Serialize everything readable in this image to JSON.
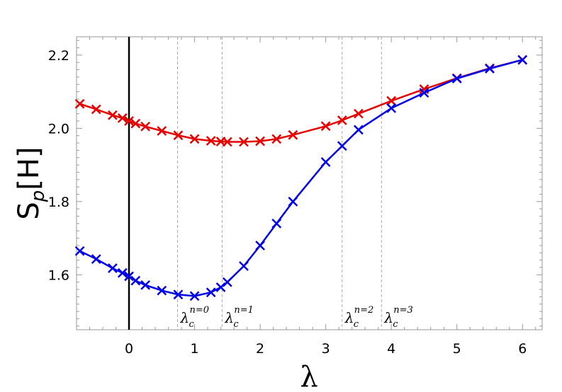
{
  "chart_data": {
    "type": "line",
    "xlabel": "λ",
    "ylabel": "S",
    "ylabel_sub": "p",
    "ylabel_suffix": "[H]",
    "xlim": [
      -0.8,
      6.3
    ],
    "ylim": [
      1.45,
      2.25
    ],
    "xticks": [
      0,
      1,
      2,
      3,
      4,
      5,
      6
    ],
    "yticks": [
      1.6,
      1.8,
      2.0,
      2.2
    ],
    "xtick_labels": [
      "0",
      "1",
      "2",
      "3",
      "4",
      "5",
      "6"
    ],
    "ytick_labels": [
      "1.6",
      "1.8",
      "2.0",
      "2.2"
    ],
    "grid": false,
    "vertical_line_x": 0,
    "critical_lines": [
      {
        "x": 0.74,
        "label": "λ",
        "sub": "c",
        "sup": "n=0"
      },
      {
        "x": 1.42,
        "label": "λ",
        "sub": "c",
        "sup": "n=1"
      },
      {
        "x": 3.25,
        "label": "λ",
        "sub": "c",
        "sup": "n=2"
      },
      {
        "x": 3.85,
        "label": "λ",
        "sub": "c",
        "sup": "n=3"
      }
    ],
    "series": [
      {
        "color": "#e60000",
        "marker": "x",
        "x": [
          -0.75,
          -0.5,
          -0.25,
          -0.1,
          0,
          0.1,
          0.25,
          0.5,
          0.75,
          1.0,
          1.25,
          1.4,
          1.5,
          1.75,
          2.0,
          2.25,
          2.5,
          3.0,
          3.25,
          3.5,
          4.0,
          4.5,
          5.0,
          5.5,
          6.0
        ],
        "values": [
          2.067,
          2.052,
          2.036,
          2.028,
          2.02,
          2.013,
          2.005,
          1.993,
          1.981,
          1.971,
          1.966,
          1.964,
          1.963,
          1.963,
          1.965,
          1.971,
          1.982,
          2.006,
          2.022,
          2.04,
          2.075,
          2.107,
          2.137,
          2.164,
          2.187
        ]
      },
      {
        "color": "#0000e6",
        "marker": "x",
        "x": [
          -0.75,
          -0.5,
          -0.25,
          -0.1,
          0,
          0.1,
          0.25,
          0.5,
          0.75,
          1.0,
          1.25,
          1.4,
          1.5,
          1.75,
          2.0,
          2.25,
          2.5,
          3.0,
          3.25,
          3.5,
          4.0,
          4.5,
          5.0,
          5.5,
          6.0
        ],
        "values": [
          1.665,
          1.643,
          1.618,
          1.605,
          1.596,
          1.584,
          1.572,
          1.557,
          1.546,
          1.542,
          1.552,
          1.566,
          1.58,
          1.624,
          1.68,
          1.74,
          1.8,
          1.908,
          1.952,
          1.996,
          2.055,
          2.097,
          2.136,
          2.163,
          2.187
        ]
      }
    ]
  }
}
